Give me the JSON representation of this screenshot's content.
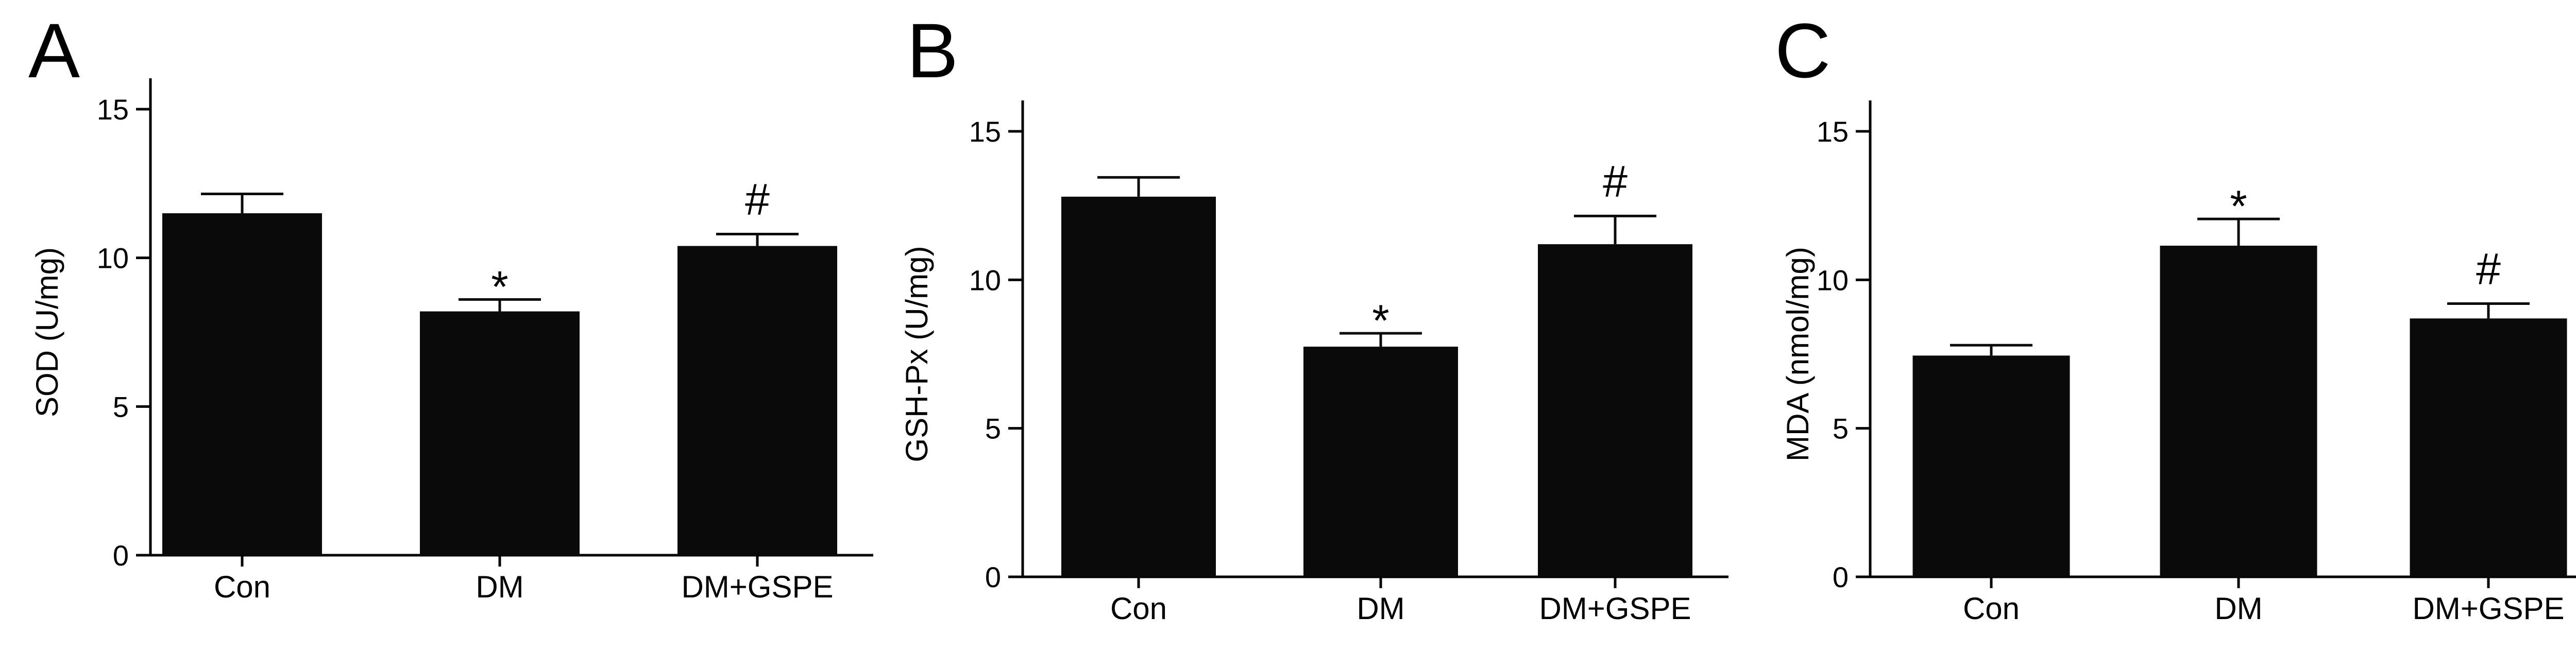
{
  "chart_data": [
    {
      "panel": "A",
      "type": "bar",
      "ylabel": "SOD (U/mg)",
      "categories": [
        "Con",
        "DM",
        "DM+GSPE"
      ],
      "values": [
        11.5,
        8.2,
        10.4
      ],
      "errors": [
        0.65,
        0.4,
        0.4
      ],
      "significance": [
        "",
        "*",
        "#"
      ],
      "ylim": [
        0,
        15
      ],
      "yticks": [
        0,
        5,
        10,
        15
      ],
      "grid": false
    },
    {
      "panel": "B",
      "type": "bar",
      "ylabel": "GSH-Px (U/mg)",
      "categories": [
        "Con",
        "DM",
        "DM+GSPE"
      ],
      "values": [
        12.8,
        7.75,
        11.2
      ],
      "errors": [
        0.65,
        0.45,
        0.95
      ],
      "significance": [
        "",
        "*",
        "#"
      ],
      "ylim": [
        0,
        15
      ],
      "yticks": [
        0,
        5,
        10,
        15
      ],
      "grid": false
    },
    {
      "panel": "C",
      "type": "bar",
      "ylabel": "MDA (nmol/mg)",
      "categories": [
        "Con",
        "DM",
        "DM+GSPE"
      ],
      "values": [
        7.45,
        11.15,
        8.7
      ],
      "errors": [
        0.35,
        0.9,
        0.5
      ],
      "significance": [
        "",
        "*",
        "#"
      ],
      "ylim": [
        0,
        15
      ],
      "yticks": [
        0,
        5,
        10,
        15
      ],
      "grid": false
    }
  ],
  "colors": {
    "bar": "#0a0a0a",
    "axis": "#000000",
    "text": "#000000"
  }
}
